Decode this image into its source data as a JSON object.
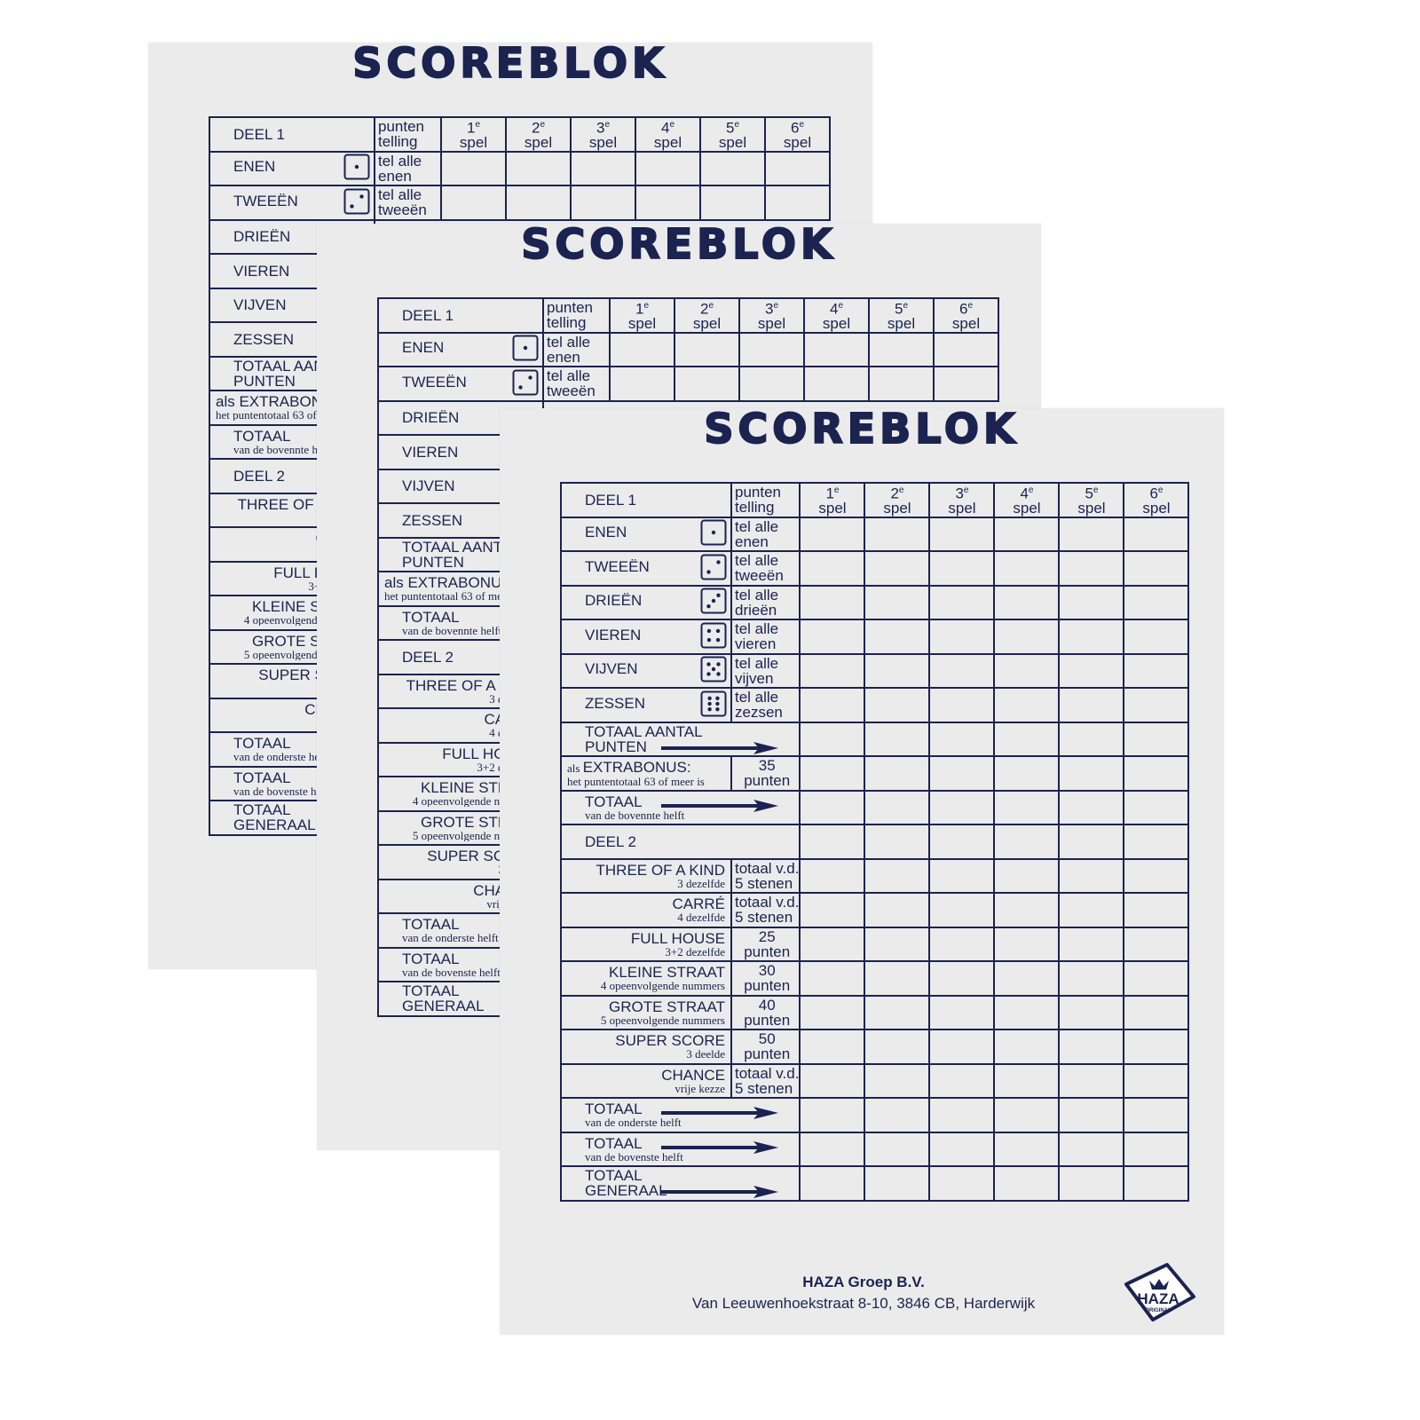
{
  "colors": {
    "ink": "#1b2350",
    "paper": "#ebebeb"
  },
  "title": "SCOREBLOK",
  "header": {
    "section": "DEEL 1",
    "points_col": [
      "punten",
      "telling"
    ],
    "games": [
      [
        "1",
        "e",
        "spel"
      ],
      [
        "2",
        "e",
        "spel"
      ],
      [
        "3",
        "e",
        "spel"
      ],
      [
        "4",
        "e",
        "spel"
      ],
      [
        "5",
        "e",
        "spel"
      ],
      [
        "6",
        "e",
        "spel"
      ]
    ]
  },
  "rows": [
    {
      "type": "dice",
      "name": "ENEN",
      "pips": 1,
      "points": [
        "tel alle",
        "enen"
      ]
    },
    {
      "type": "dice",
      "name": "TWEEËN",
      "pips": 2,
      "points": [
        "tel alle",
        "tweeën"
      ]
    },
    {
      "type": "dice",
      "name": "DRIEËN",
      "pips": 3,
      "points": [
        "tel alle",
        "drieën"
      ]
    },
    {
      "type": "dice",
      "name": "VIEREN",
      "pips": 4,
      "points": [
        "tel alle",
        "vieren"
      ]
    },
    {
      "type": "dice",
      "name": "VIJVEN",
      "pips": 5,
      "points": [
        "tel alle",
        "vijven"
      ]
    },
    {
      "type": "dice",
      "name": "ZESSEN",
      "pips": 6,
      "points": [
        "tel alle",
        "zezsen"
      ]
    },
    {
      "type": "arrow",
      "name": [
        "TOTAAL AANTAL",
        "PUNTEN"
      ],
      "sub": ""
    },
    {
      "type": "bonus",
      "prefix": "als",
      "name": "EXTRABONUS:",
      "sub": "het puntentotaal 63 of meer is",
      "points": [
        "35",
        "punten"
      ]
    },
    {
      "type": "arrow",
      "name": [
        "TOTAAL"
      ],
      "sub": "van de bovennte helft"
    },
    {
      "type": "section",
      "name": "DEEL 2"
    },
    {
      "type": "combo",
      "name": "THREE OF A KIND",
      "sub": "3 dezelfde",
      "points": [
        "totaal v.d.",
        "5 stenen"
      ]
    },
    {
      "type": "combo",
      "name": "CARRÉ",
      "sub": "4 dezelfde",
      "points": [
        "totaal v.d.",
        "5 stenen"
      ]
    },
    {
      "type": "combo",
      "name": "FULL HOUSE",
      "sub": "3+2 dezelfde",
      "points": [
        "25",
        "punten"
      ]
    },
    {
      "type": "combo",
      "name": "KLEINE STRAAT",
      "sub": "4 opeenvolgende nummers",
      "points": [
        "30",
        "punten"
      ]
    },
    {
      "type": "combo",
      "name": "GROTE STRAAT",
      "sub": "5 opeenvolgende nummers",
      "points": [
        "40",
        "punten"
      ]
    },
    {
      "type": "combo",
      "name": "SUPER SCORE",
      "sub": "3 deelde",
      "points": [
        "50",
        "punten"
      ]
    },
    {
      "type": "combo",
      "name": "CHANCE",
      "sub": "vrije kezze",
      "points": [
        "totaal v.d.",
        "5 stenen"
      ]
    },
    {
      "type": "arrow",
      "name": [
        "TOTAAL"
      ],
      "sub": "van de onderste helft"
    },
    {
      "type": "arrow",
      "name": [
        "TOTAAL"
      ],
      "sub": "van de bovenste helft"
    },
    {
      "type": "arrow",
      "name": [
        "TOTAAL",
        "GENERAAL"
      ],
      "sub": ""
    }
  ],
  "footer": {
    "company": "HAZA Groep B.V.",
    "address": "Van Leeuwenhoekstraat 8-10, 3846 CB, Harderwijk",
    "logo_text": "HAZA",
    "logo_sub": "ORIGINAL"
  },
  "sheets": 3
}
